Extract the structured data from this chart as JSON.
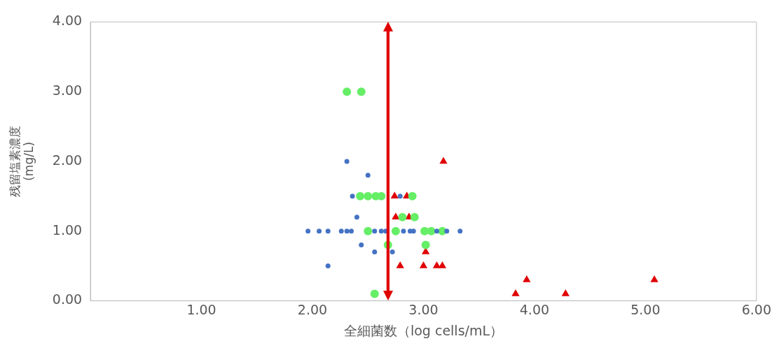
{
  "chart_data": {
    "type": "scatter",
    "xlabel": "全細菌数（log cells/mL）",
    "ylabel": "残留塩素濃度\n(mg/L)",
    "xlim": [
      0,
      6
    ],
    "xticks": [
      {
        "value": 0,
        "label": null
      },
      {
        "value": 1,
        "label": "1.00"
      },
      {
        "value": 2,
        "label": "2.00"
      },
      {
        "value": 3,
        "label": "3.00"
      },
      {
        "value": 4,
        "label": "4.00"
      },
      {
        "value": 5,
        "label": "5.00"
      },
      {
        "value": 6,
        "label": "6.00"
      }
    ],
    "ylim": [
      0,
      4
    ],
    "yticks": [
      {
        "value": 0,
        "label": "0.00"
      },
      {
        "value": 1,
        "label": "1.00"
      },
      {
        "value": 2,
        "label": "2.00"
      },
      {
        "value": 3,
        "label": "3.00"
      },
      {
        "value": 4,
        "label": "4.00"
      }
    ],
    "grid": false,
    "legend": false,
    "series": [
      {
        "color": "#4472c4",
        "marker": "circle",
        "x": [
          1.96,
          2.06,
          2.14,
          2.26,
          2.31,
          2.35,
          2.56,
          2.62,
          2.66,
          2.82,
          2.88,
          2.91,
          3.12,
          3.21,
          3.33,
          2.31,
          2.5,
          2.36,
          2.79,
          2.4,
          2.44,
          2.56,
          2.72,
          2.14
        ],
        "values": [
          1,
          1,
          1,
          1,
          1,
          1,
          1,
          1,
          1,
          1,
          1,
          1,
          1,
          1,
          1,
          2,
          1.8,
          1.5,
          1.5,
          1.2,
          0.8,
          0.7,
          0.7,
          0.5
        ]
      },
      {
        "color": "#66ee66",
        "marker": "circle",
        "x": [
          2.31,
          2.44,
          2.43,
          2.5,
          2.57,
          2.62,
          2.9,
          2.81,
          2.92,
          2.5,
          2.75,
          3.01,
          3.07,
          3.17,
          2.68,
          3.02,
          2.56
        ],
        "values": [
          3,
          3,
          1.5,
          1.5,
          1.5,
          1.5,
          1.5,
          1.2,
          1.2,
          1,
          1,
          1,
          1,
          1,
          0.8,
          0.8,
          0.1
        ]
      },
      {
        "color": "#e00000",
        "marker": "triangle",
        "x": [
          2.74,
          2.85,
          2.75,
          2.87,
          3.18,
          3.02,
          2.79,
          3,
          3.12,
          3.17,
          3.83,
          3.93,
          4.28,
          5.08
        ],
        "values": [
          1.5,
          1.5,
          1.2,
          1.2,
          2,
          0.7,
          0.5,
          0.5,
          0.5,
          0.5,
          0.1,
          0.3,
          0.1,
          0.3
        ]
      }
    ],
    "ref_lines": [
      {
        "axis": "x",
        "value": 2.68,
        "color": "#e00000"
      }
    ]
  }
}
